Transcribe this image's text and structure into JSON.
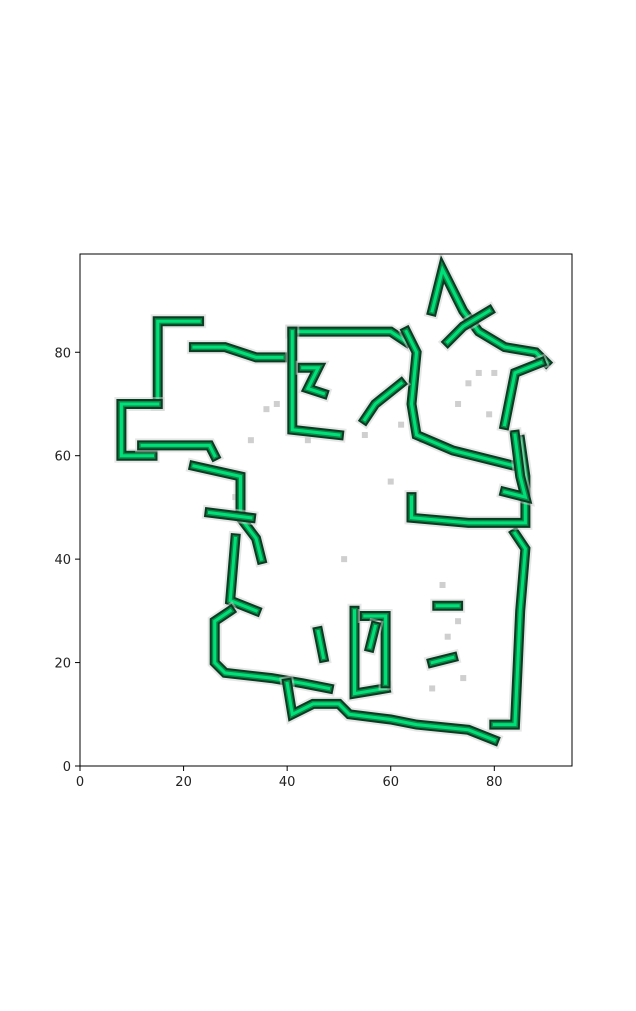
{
  "chart_data": {
    "type": "heatmap",
    "title": "",
    "xlabel": "",
    "ylabel": "",
    "xlim": [
      0,
      95
    ],
    "ylim": [
      0,
      99
    ],
    "x_ticks": [
      0,
      20,
      40,
      60,
      80
    ],
    "y_ticks": [
      0,
      20,
      40,
      60,
      80
    ],
    "grid": false,
    "legend": "none",
    "colors": {
      "wall_dark": "#0b3b22",
      "wall_mid": "#0a8a45",
      "wall_bright": "#00e07a",
      "noise": "#cfcfcf",
      "axis": "#000000"
    },
    "walls": [
      {
        "name": "outer-left-upper",
        "points": [
          [
            15,
            70
          ],
          [
            15,
            86
          ],
          [
            23,
            86
          ]
        ]
      },
      {
        "name": "left-bay",
        "points": [
          [
            15,
            70
          ],
          [
            8,
            70
          ],
          [
            8,
            60
          ],
          [
            14,
            60
          ]
        ]
      },
      {
        "name": "left-inner-ledge",
        "points": [
          [
            12,
            62
          ],
          [
            25,
            62
          ],
          [
            26,
            60
          ]
        ]
      },
      {
        "name": "top-left-segment",
        "points": [
          [
            22,
            81
          ],
          [
            28,
            81
          ],
          [
            34,
            79
          ],
          [
            39,
            79
          ]
        ]
      },
      {
        "name": "left-diagonal-wall",
        "points": [
          [
            22,
            58
          ],
          [
            31,
            56
          ],
          [
            31,
            48
          ],
          [
            34,
            44
          ],
          [
            35,
            40
          ]
        ]
      },
      {
        "name": "left-stub",
        "points": [
          [
            25,
            49
          ],
          [
            33,
            48
          ]
        ]
      },
      {
        "name": "left-lower-wall",
        "points": [
          [
            30,
            44
          ],
          [
            29,
            32
          ],
          [
            34,
            30
          ]
        ]
      },
      {
        "name": "bottom-left-curve",
        "points": [
          [
            29,
            30
          ],
          [
            26,
            28
          ],
          [
            26,
            20
          ],
          [
            28,
            18
          ],
          [
            37,
            17
          ],
          [
            43,
            16
          ],
          [
            48,
            15
          ]
        ]
      },
      {
        "name": "bottom-notch",
        "points": [
          [
            40,
            16
          ],
          [
            41,
            10
          ],
          [
            45,
            12
          ],
          [
            50,
            12
          ],
          [
            52,
            10
          ],
          [
            60,
            9
          ],
          [
            65,
            8
          ],
          [
            75,
            7
          ],
          [
            80,
            5
          ]
        ]
      },
      {
        "name": "right-outer-wall",
        "points": [
          [
            80,
            8
          ],
          [
            84,
            8
          ],
          [
            85,
            30
          ],
          [
            86,
            42
          ],
          [
            84,
            45
          ]
        ]
      },
      {
        "name": "mid-right-wall",
        "points": [
          [
            64,
            52
          ],
          [
            64,
            48
          ],
          [
            75,
            47
          ],
          [
            86,
            47
          ],
          [
            86,
            56
          ],
          [
            85,
            63
          ]
        ]
      },
      {
        "name": "upper-room-top",
        "points": [
          [
            41,
            84
          ],
          [
            60,
            84
          ],
          [
            63,
            82
          ]
        ]
      },
      {
        "name": "upper-room-left",
        "points": [
          [
            41,
            84
          ],
          [
            41,
            65
          ],
          [
            50,
            64
          ]
        ]
      },
      {
        "name": "upper-room-inner",
        "points": [
          [
            43,
            77
          ],
          [
            46,
            77
          ],
          [
            44,
            73
          ],
          [
            47,
            72
          ]
        ]
      },
      {
        "name": "upper-right-diagonal",
        "points": [
          [
            63,
            84
          ],
          [
            65,
            80
          ],
          [
            64,
            70
          ],
          [
            65,
            64
          ],
          [
            72,
            61
          ],
          [
            84,
            58
          ]
        ]
      },
      {
        "name": "upper-right-arm",
        "points": [
          [
            62,
            74
          ],
          [
            57,
            70
          ],
          [
            55,
            67
          ]
        ]
      },
      {
        "name": "top-right-peak",
        "points": [
          [
            68,
            88
          ],
          [
            70,
            96
          ],
          [
            74,
            88
          ],
          [
            77,
            84
          ],
          [
            82,
            81
          ],
          [
            88,
            80
          ],
          [
            90,
            78
          ]
        ]
      },
      {
        "name": "top-right-branch",
        "points": [
          [
            71,
            82
          ],
          [
            74,
            85
          ],
          [
            79,
            88
          ]
        ]
      },
      {
        "name": "right-vertical",
        "points": [
          [
            84,
            64
          ],
          [
            85,
            56
          ],
          [
            86,
            52
          ],
          [
            82,
            53
          ]
        ]
      },
      {
        "name": "right-spur",
        "points": [
          [
            82,
            66
          ],
          [
            84,
            76
          ],
          [
            89,
            78
          ]
        ]
      },
      {
        "name": "center-room-left",
        "points": [
          [
            53,
            30
          ],
          [
            53,
            14
          ],
          [
            59,
            15
          ]
        ]
      },
      {
        "name": "center-room-right",
        "points": [
          [
            55,
            29
          ],
          [
            59,
            29
          ],
          [
            59,
            16
          ]
        ]
      },
      {
        "name": "center-room-inner",
        "points": [
          [
            56,
            23
          ],
          [
            57,
            27
          ]
        ]
      },
      {
        "name": "small-pillar",
        "points": [
          [
            46,
            26
          ],
          [
            47,
            21
          ]
        ]
      },
      {
        "name": "small-dash-1",
        "points": [
          [
            69,
            31
          ],
          [
            73,
            31
          ]
        ]
      },
      {
        "name": "small-dash-2",
        "points": [
          [
            68,
            20
          ],
          [
            72,
            21
          ]
        ]
      }
    ],
    "speckles": [
      [
        33,
        63
      ],
      [
        44,
        63
      ],
      [
        51,
        40
      ],
      [
        36,
        69
      ],
      [
        60,
        55
      ],
      [
        70,
        35
      ],
      [
        73,
        28
      ],
      [
        71,
        25
      ],
      [
        68,
        15
      ],
      [
        74,
        17
      ],
      [
        75,
        74
      ],
      [
        77,
        76
      ],
      [
        79,
        68
      ],
      [
        66,
        63
      ],
      [
        55,
        64
      ],
      [
        30,
        52
      ],
      [
        38,
        70
      ],
      [
        62,
        66
      ],
      [
        73,
        70
      ],
      [
        80,
        76
      ]
    ]
  }
}
